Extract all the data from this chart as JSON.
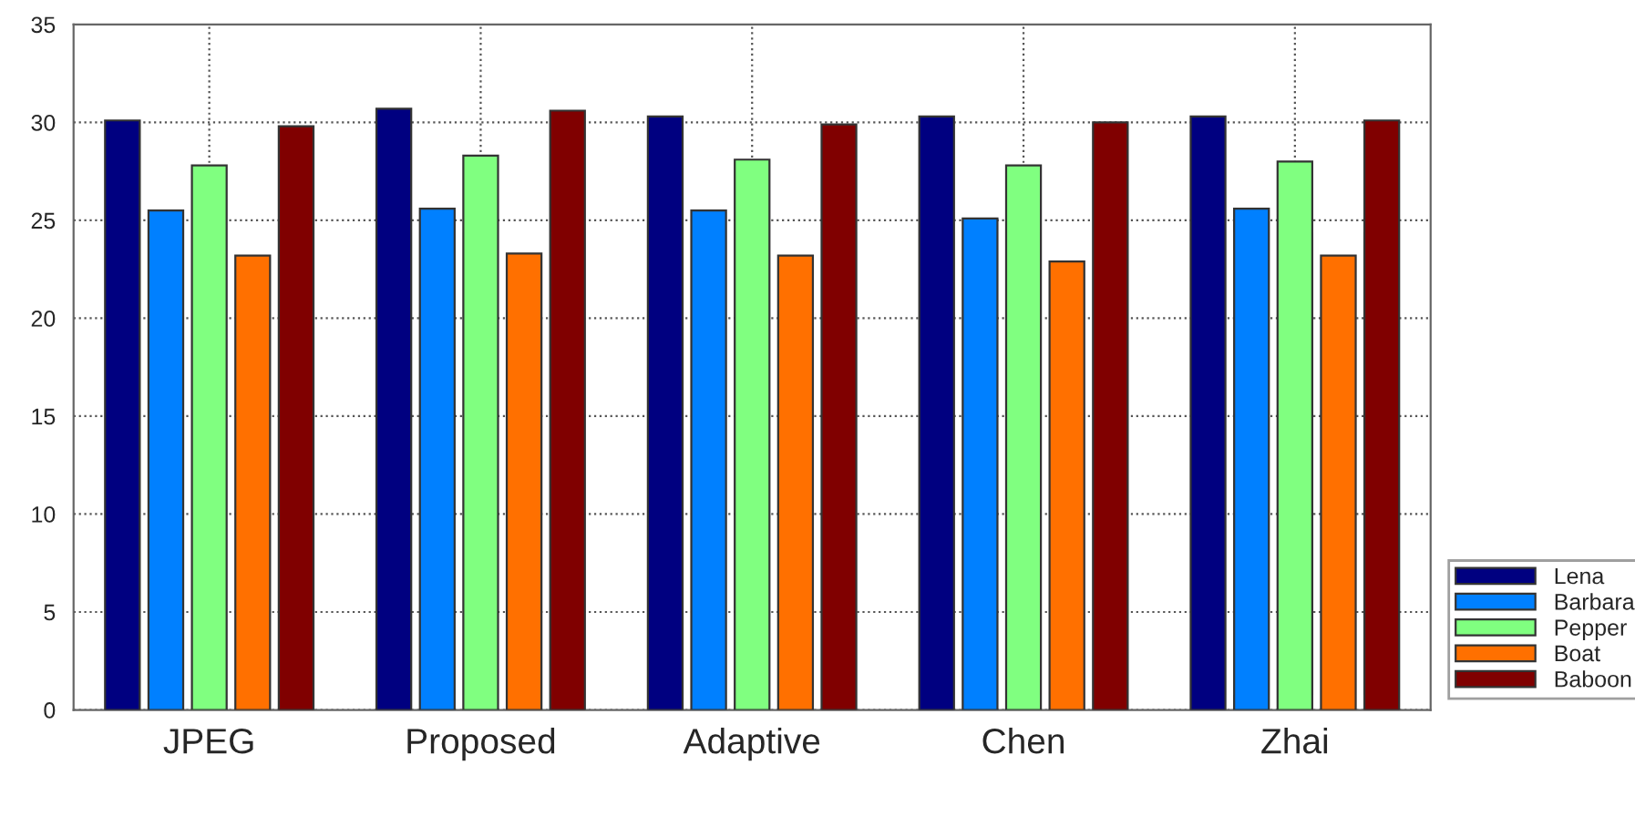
{
  "chart_data": {
    "type": "bar",
    "categories": [
      "JPEG",
      "Proposed",
      "Adaptive",
      "Chen",
      "Zhai"
    ],
    "series": [
      {
        "name": "Lena",
        "color": "#000080",
        "values": [
          30.1,
          30.7,
          30.3,
          30.3,
          30.3
        ]
      },
      {
        "name": "Barbara",
        "color": "#0080ff",
        "values": [
          25.5,
          25.6,
          25.5,
          25.1,
          25.6
        ]
      },
      {
        "name": "Pepper",
        "color": "#80ff80",
        "values": [
          27.8,
          28.3,
          28.1,
          27.8,
          28.0
        ]
      },
      {
        "name": "Boat",
        "color": "#ff7000",
        "values": [
          23.2,
          23.3,
          23.2,
          22.9,
          23.2
        ]
      },
      {
        "name": "Baboon",
        "color": "#800000",
        "values": [
          29.8,
          30.6,
          29.9,
          30.0,
          30.1
        ]
      }
    ],
    "ylim": [
      0,
      35
    ],
    "yticks": [
      0,
      5,
      10,
      15,
      20,
      25,
      30,
      35
    ],
    "grid": true,
    "legend": "bottom right"
  }
}
